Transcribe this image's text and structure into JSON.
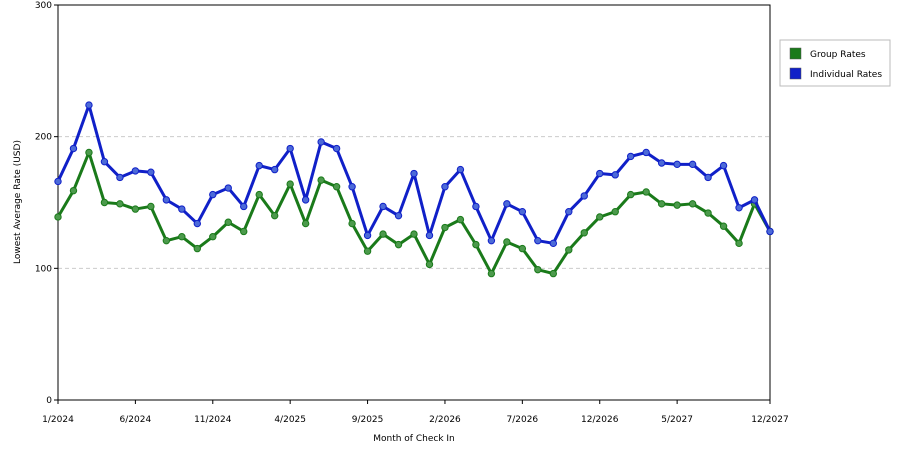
{
  "chart_data": {
    "type": "line",
    "x_label": "Month of Check In",
    "y_label": "Lowest Average Rate (USD)",
    "categories": [
      "1/2024",
      null,
      null,
      null,
      null,
      "6/2024",
      null,
      null,
      null,
      null,
      "11/2024",
      null,
      null,
      null,
      null,
      "4/2025",
      null,
      null,
      null,
      null,
      "9/2025",
      null,
      null,
      null,
      null,
      "2/2026",
      null,
      null,
      null,
      null,
      "7/2026",
      null,
      null,
      null,
      null,
      "12/2026",
      null,
      null,
      null,
      null,
      "5/2027",
      null,
      null,
      null,
      null,
      null,
      "12/2027"
    ],
    "series": [
      {
        "name": "Group Rates",
        "color": "#1a7a1a",
        "marker": "#4c9a4c",
        "values": [
          139,
          159,
          188,
          150,
          149,
          145,
          147,
          121,
          124,
          115,
          124,
          135,
          128,
          156,
          140,
          164,
          134,
          167,
          162,
          134,
          113,
          126,
          118,
          126,
          103,
          131,
          137,
          118,
          96,
          120,
          115,
          99,
          96,
          114,
          127,
          139,
          143,
          156,
          158,
          149,
          148,
          149,
          142,
          132,
          119,
          149,
          128
        ]
      },
      {
        "name": "Individual Rates",
        "color": "#1020c8",
        "marker": "#4c6ad8",
        "values": [
          166,
          191,
          224,
          181,
          169,
          174,
          173,
          152,
          145,
          134,
          156,
          161,
          147,
          178,
          175,
          191,
          152,
          196,
          191,
          162,
          125,
          147,
          140,
          172,
          125,
          162,
          175,
          147,
          121,
          149,
          143,
          121,
          119,
          143,
          155,
          172,
          171,
          185,
          188,
          180,
          179,
          179,
          169,
          178,
          146,
          152,
          128
        ]
      }
    ],
    "ylim": [
      0,
      300
    ],
    "yticks": [
      0,
      100,
      200,
      300
    ],
    "grid": true,
    "legend": "right"
  }
}
